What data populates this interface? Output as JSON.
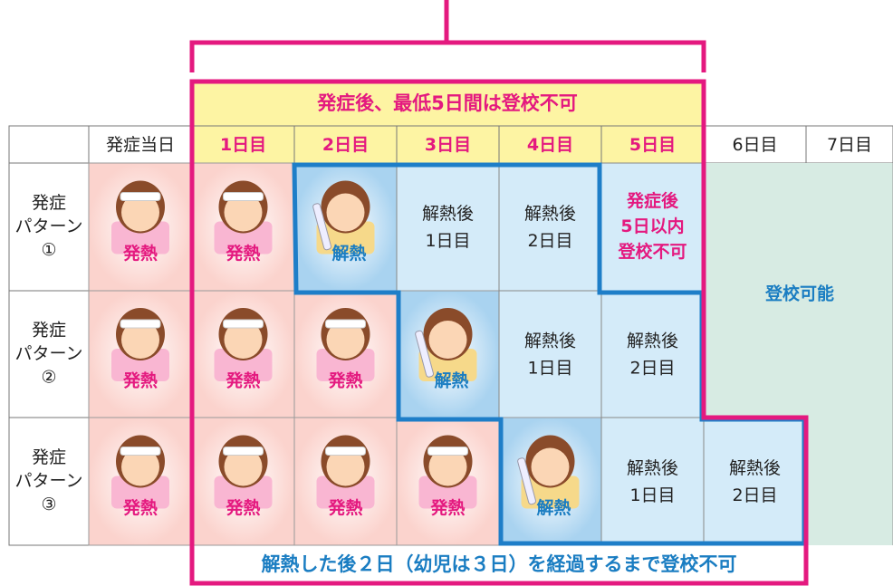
{
  "top_banner": "発症後、最低5日間は登校不可",
  "header": [
    "発症当日",
    "1日目",
    "2日目",
    "3日目",
    "4日目",
    "5日目",
    "6日目",
    "7日目"
  ],
  "rows": [
    {
      "label": [
        "発症",
        "パターン",
        "①"
      ],
      "fever": [
        "発熱",
        "発熱"
      ],
      "recovered": "解熱",
      "after": [
        [
          "解熱後",
          "1日目"
        ],
        [
          "解熱後",
          "2日目"
        ]
      ],
      "note": [
        "発症後",
        "5日以内",
        "登校不可"
      ]
    },
    {
      "label": [
        "発症",
        "パターン",
        "②"
      ],
      "fever": [
        "発熱",
        "発熱",
        "発熱"
      ],
      "recovered": "解熱",
      "after": [
        [
          "解熱後",
          "1日目"
        ],
        [
          "解熱後",
          "2日目"
        ]
      ]
    },
    {
      "label": [
        "発症",
        "パターン",
        "③"
      ],
      "fever": [
        "発熱",
        "発熱",
        "発熱",
        "発熱"
      ],
      "recovered": "解熱",
      "after": [
        [
          "解熱後",
          "1日目"
        ],
        [
          "解熱後",
          "2日目"
        ]
      ]
    }
  ],
  "allowed": "登校可能",
  "bottom_banner": "解熱した後２日（幼児は３日）を経過するまで登校不可"
}
